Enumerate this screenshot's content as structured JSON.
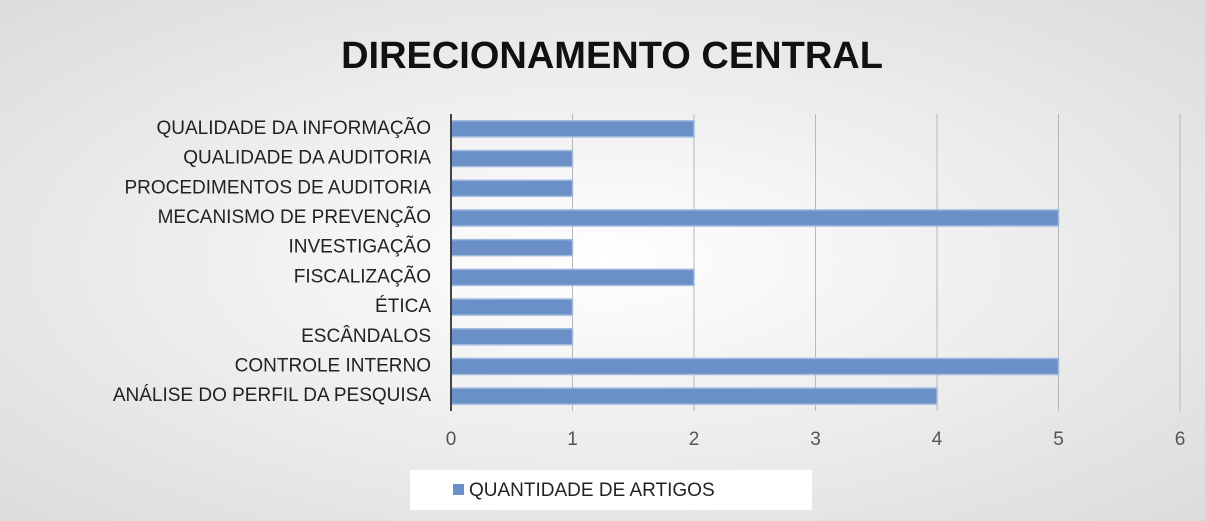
{
  "chart_data": {
    "type": "hbar",
    "title": "DIRECIONAMENTO CENTRAL",
    "categories": [
      "QUALIDADE DA INFORMAÇÃO",
      "QUALIDADE DA AUDITORIA",
      "PROCEDIMENTOS DE AUDITORIA",
      "MECANISMO DE PREVENÇÃO",
      "INVESTIGAÇÃO",
      "FISCALIZAÇÃO",
      "ÉTICA",
      "ESCÂNDALOS",
      "CONTROLE INTERNO",
      "ANÁLISE DO PERFIL DA PESQUISA"
    ],
    "series": [
      {
        "name": "QUANTIDADE DE ARTIGOS",
        "color": "#6b8fc7",
        "values": [
          2,
          1,
          1,
          5,
          1,
          2,
          1,
          1,
          5,
          4
        ]
      }
    ],
    "xlim": [
      0,
      6
    ],
    "xticks": [
      0,
      1,
      2,
      3,
      4,
      5,
      6
    ],
    "grid": true,
    "legend": "bottom"
  }
}
